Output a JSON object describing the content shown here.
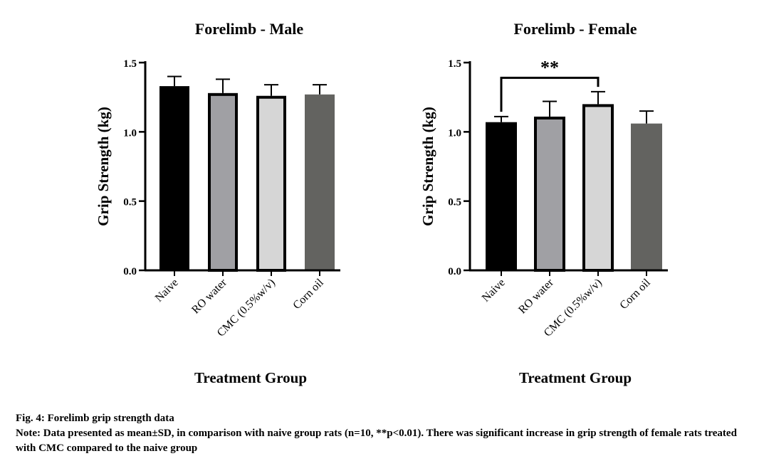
{
  "chart_data": [
    {
      "type": "bar",
      "title": "Forelimb - Male",
      "xlabel": "Treatment Group",
      "ylabel": "Grip Strength (kg)",
      "ylim": [
        0,
        1.5
      ],
      "yticks": [
        "0.0",
        "0.5",
        "1.0",
        "1.5"
      ],
      "categories": [
        "Naive",
        "RO water",
        "CMC (0.5%w/v)",
        "Corn oil"
      ],
      "values": [
        1.33,
        1.28,
        1.26,
        1.27
      ],
      "errors": [
        0.07,
        0.1,
        0.08,
        0.07
      ],
      "colors": [
        "#000000",
        "#a0a0a4",
        "#d6d6d6",
        "#636360"
      ],
      "significance": null
    },
    {
      "type": "bar",
      "title": "Forelimb - Female",
      "xlabel": "Treatment Group",
      "ylabel": "Grip Strength (kg)",
      "ylim": [
        0,
        1.5
      ],
      "yticks": [
        "0.0",
        "0.5",
        "1.0",
        "1.5"
      ],
      "categories": [
        "Naive",
        "RO water",
        "CMC (0.5%w/v)",
        "Corn oil"
      ],
      "values": [
        1.07,
        1.11,
        1.2,
        1.06
      ],
      "errors": [
        0.04,
        0.11,
        0.09,
        0.09
      ],
      "colors": [
        "#000000",
        "#a0a0a4",
        "#d6d6d6",
        "#636360"
      ],
      "significance": {
        "from": 0,
        "to": 2,
        "label": "**"
      }
    }
  ],
  "caption": {
    "title": "Fig. 4: Forelimb grip strength data",
    "note": "Note: Data presented as mean±SD, in comparison with naive group rats (n=10, **p<0.01). There was significant increase in grip strength of female rats treated with CMC compared to the naive group"
  }
}
